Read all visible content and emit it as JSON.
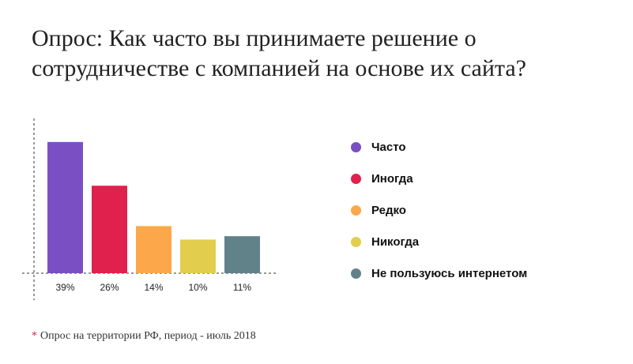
{
  "title": "Опрос: Как часто вы принимаете решение о сотрудничестве с компанией на основе их сайта?",
  "chart_data": {
    "type": "bar",
    "title": "Опрос: Как часто вы принимаете решение о сотрудничестве с компанией на основе их сайта?",
    "categories": [
      "Часто",
      "Иногда",
      "Редко",
      "Никогда",
      "Не пользуюсь интернетом"
    ],
    "values": [
      39,
      26,
      14,
      10,
      11
    ],
    "value_labels": [
      "39%",
      "26%",
      "14%",
      "10%",
      "11%"
    ],
    "colors": [
      "#7b4fc4",
      "#e0204d",
      "#fca84a",
      "#e2ce4c",
      "#62828a"
    ],
    "xlabel": "",
    "ylabel": "",
    "ylim": [
      0,
      46
    ],
    "grid": false,
    "legend": "right"
  },
  "legend": [
    {
      "label": "Часто",
      "color": "#7b4fc4"
    },
    {
      "label": "Иногда",
      "color": "#e0204d"
    },
    {
      "label": "Редко",
      "color": "#fca84a"
    },
    {
      "label": "Никогда",
      "color": "#e2ce4c"
    },
    {
      "label": "Не пользуюсь интернетом",
      "color": "#62828a"
    }
  ],
  "footnote": {
    "marker": "*",
    "text": "Опрос на территории РФ, период - июль 2018"
  }
}
